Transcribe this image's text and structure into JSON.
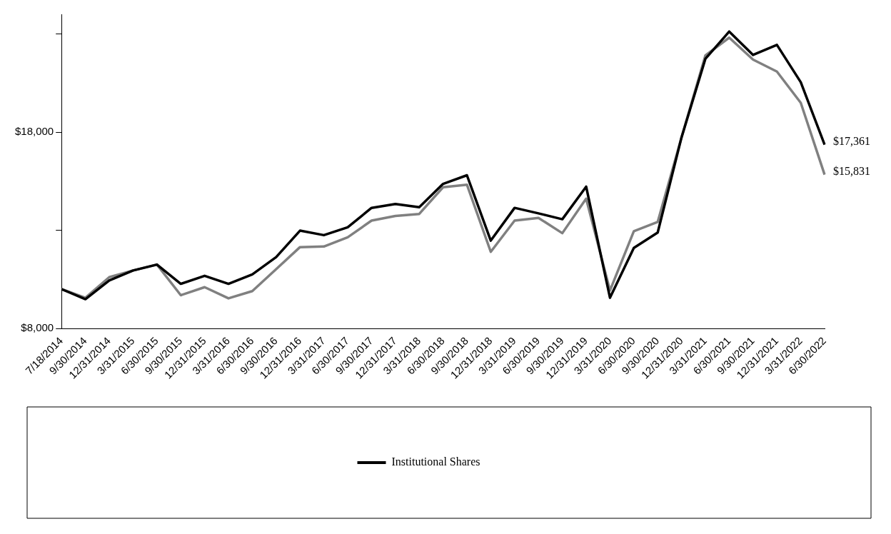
{
  "chart_data": {
    "type": "line",
    "categories": [
      "7/18/2014",
      "9/30/2014",
      "12/31/2014",
      "3/31/2015",
      "6/30/2015",
      "9/30/2015",
      "12/31/2015",
      "3/31/2016",
      "6/30/2016",
      "9/30/2016",
      "12/31/2016",
      "3/31/2017",
      "6/30/2017",
      "9/30/2017",
      "12/31/2017",
      "3/31/2018",
      "6/30/2018",
      "9/30/2018",
      "12/31/2018",
      "3/31/2019",
      "6/30/2019",
      "9/30/2019",
      "12/31/2019",
      "3/31/2020",
      "6/30/2020",
      "9/30/2020",
      "12/31/2020",
      "3/31/2021",
      "6/30/2021",
      "9/30/2021",
      "12/31/2021",
      "3/31/2022",
      "6/30/2022"
    ],
    "series": [
      {
        "name": "Institutional Shares",
        "color": "#000000",
        "values": [
          10000,
          9490,
          10440,
          10950,
          11250,
          10270,
          10680,
          10270,
          10750,
          11630,
          12980,
          12750,
          13150,
          14140,
          14340,
          14170,
          15360,
          15800,
          12470,
          14140,
          13860,
          13560,
          15220,
          9560,
          12100,
          12880,
          17730,
          21730,
          23120,
          21930,
          22440,
          20540,
          17361
        ],
        "value_labels": [
          null,
          null,
          null,
          null,
          null,
          null,
          null,
          null,
          null,
          null,
          null,
          null,
          null,
          null,
          null,
          null,
          null,
          null,
          null,
          null,
          null,
          null,
          null,
          null,
          null,
          null,
          null,
          null,
          null,
          null,
          null,
          null,
          "$17,361"
        ]
      },
      {
        "color": "#808080",
        "values": [
          10000,
          9560,
          10610,
          10950,
          11250,
          9690,
          10100,
          9530,
          9900,
          11020,
          12140,
          12170,
          12640,
          13490,
          13730,
          13830,
          15190,
          15320,
          11900,
          13490,
          13630,
          12850,
          14610,
          9930,
          12950,
          13420,
          17730,
          21900,
          22810,
          21690,
          21080,
          19490,
          15831
        ],
        "value_labels": [
          null,
          null,
          null,
          null,
          null,
          null,
          null,
          null,
          null,
          null,
          null,
          null,
          null,
          null,
          null,
          null,
          null,
          null,
          null,
          null,
          null,
          null,
          null,
          null,
          null,
          null,
          null,
          null,
          null,
          null,
          null,
          null,
          "$15,831"
        ]
      }
    ],
    "ylim": [
      8000,
      24000
    ],
    "yticks": [
      {
        "value": 8000,
        "label": "$8,000"
      },
      {
        "value": 13000,
        "label": null
      },
      {
        "value": 18000,
        "label": "$18,000"
      },
      {
        "value": 23000,
        "label": null
      }
    ],
    "grid": false,
    "legend": "bottom",
    "marker": "none",
    "line_style": "solid"
  }
}
